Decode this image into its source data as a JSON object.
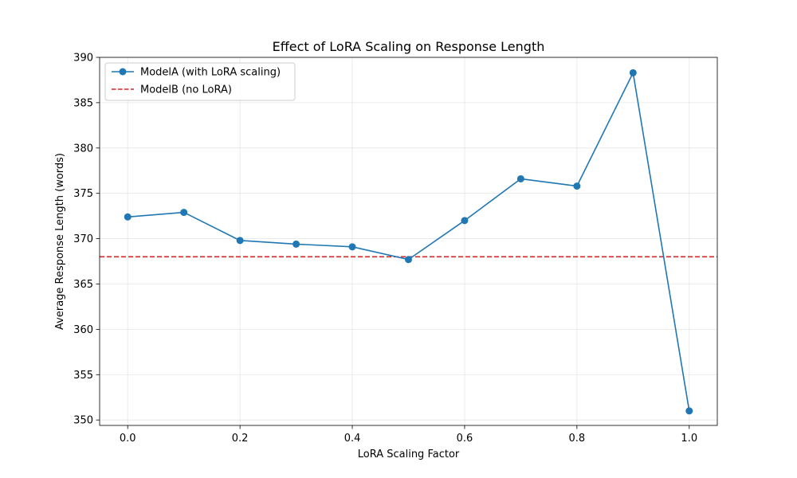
{
  "chart_data": {
    "type": "line",
    "title": "Effect of LoRA Scaling on Response Length",
    "xlabel": "LoRA Scaling Factor",
    "ylabel": "Average Response Length (words)",
    "xlim": [
      -0.05,
      1.05
    ],
    "ylim": [
      349.4,
      390.0
    ],
    "x_ticks": [
      0.0,
      0.2,
      0.4,
      0.6,
      0.8,
      1.0
    ],
    "x_tick_labels": [
      "0.0",
      "0.2",
      "0.4",
      "0.6",
      "0.8",
      "1.0"
    ],
    "y_ticks": [
      350,
      355,
      360,
      365,
      370,
      375,
      380,
      385,
      390
    ],
    "y_tick_labels": [
      "350",
      "355",
      "360",
      "365",
      "370",
      "375",
      "380",
      "385",
      "390"
    ],
    "grid": true,
    "legend_position": "top-left",
    "series": [
      {
        "name": "ModelA (with LoRA scaling)",
        "kind": "line-with-markers",
        "color": "#1f77b4",
        "x": [
          0.0,
          0.1,
          0.2,
          0.3,
          0.4,
          0.5,
          0.6,
          0.7,
          0.8,
          0.9,
          1.0
        ],
        "y": [
          372.4,
          372.9,
          369.8,
          369.4,
          369.1,
          367.7,
          372.0,
          376.6,
          375.8,
          388.3,
          351.0
        ]
      },
      {
        "name": "ModelB (no LoRA)",
        "kind": "horizontal-dashed-line",
        "color": "#d62728",
        "y": 368.0
      }
    ]
  }
}
